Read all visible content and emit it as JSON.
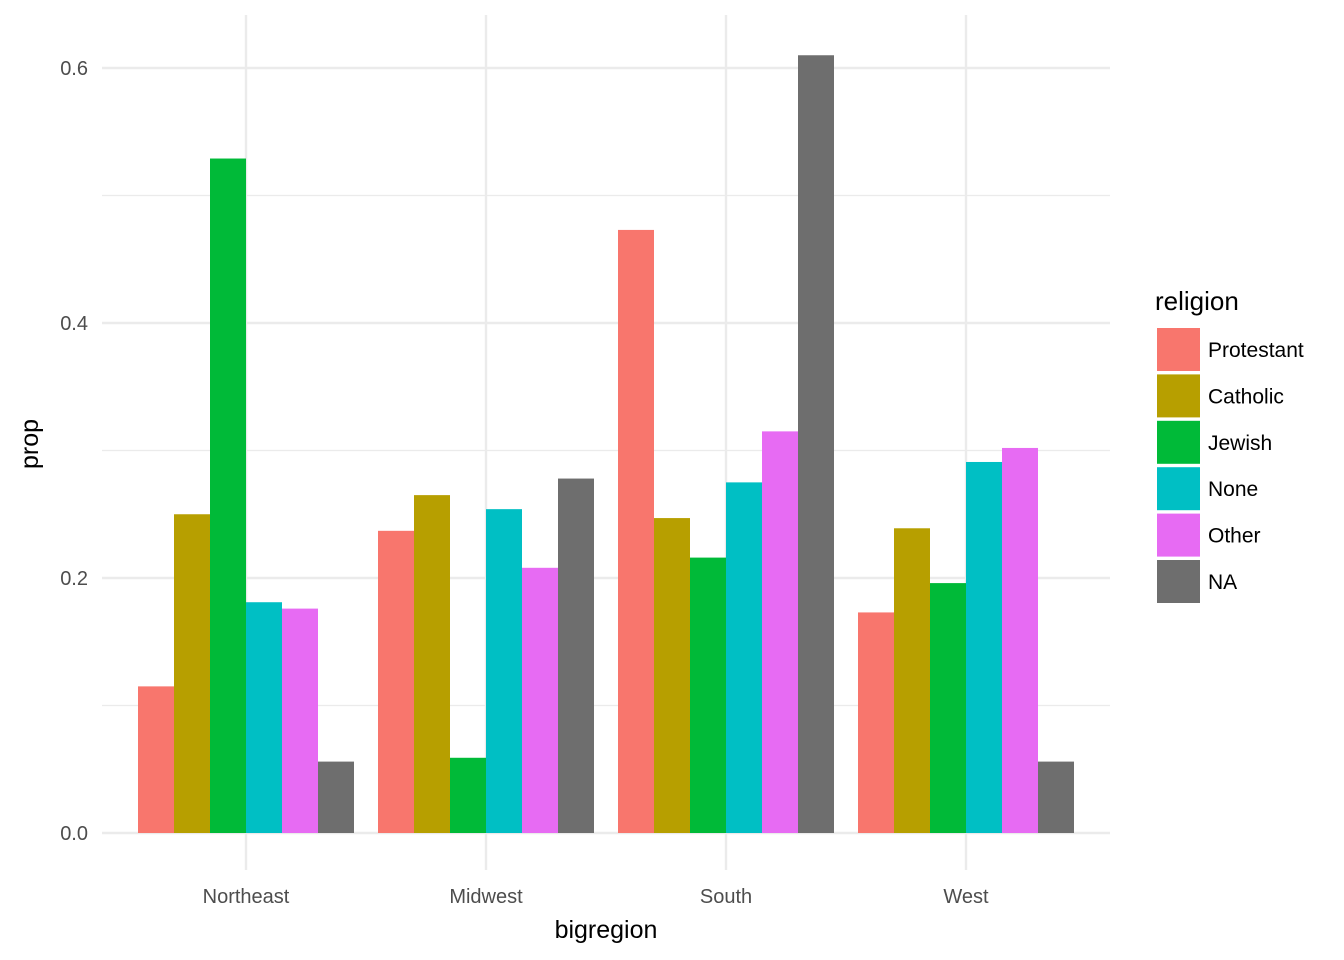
{
  "chart_data": {
    "type": "bar",
    "title": "",
    "xlabel": "bigregion",
    "ylabel": "prop",
    "categories": [
      "Northeast",
      "Midwest",
      "South",
      "West"
    ],
    "ylim": [
      -0.028,
      0.64
    ],
    "yticks": [
      0.0,
      0.2,
      0.4,
      0.6
    ],
    "ytick_labels": [
      "0.0",
      "0.2",
      "0.4",
      "0.6"
    ],
    "grid": true,
    "legend": {
      "title": "religion",
      "position": "right"
    },
    "series": [
      {
        "name": "Protestant",
        "color": "#F8766D",
        "values": [
          0.115,
          0.237,
          0.473,
          0.173
        ]
      },
      {
        "name": "Catholic",
        "color": "#B79F00",
        "values": [
          0.25,
          0.265,
          0.247,
          0.239
        ]
      },
      {
        "name": "Jewish",
        "color": "#00BA38",
        "values": [
          0.529,
          0.059,
          0.216,
          0.196
        ]
      },
      {
        "name": "None",
        "color": "#00BFC4",
        "values": [
          0.181,
          0.254,
          0.275,
          0.291
        ]
      },
      {
        "name": "Other",
        "color": "#E76BF3",
        "values": [
          0.176,
          0.208,
          0.315,
          0.302
        ]
      },
      {
        "name": "NA",
        "color": "#6E6E6E",
        "values": [
          0.056,
          0.278,
          0.61,
          0.056
        ]
      }
    ]
  }
}
